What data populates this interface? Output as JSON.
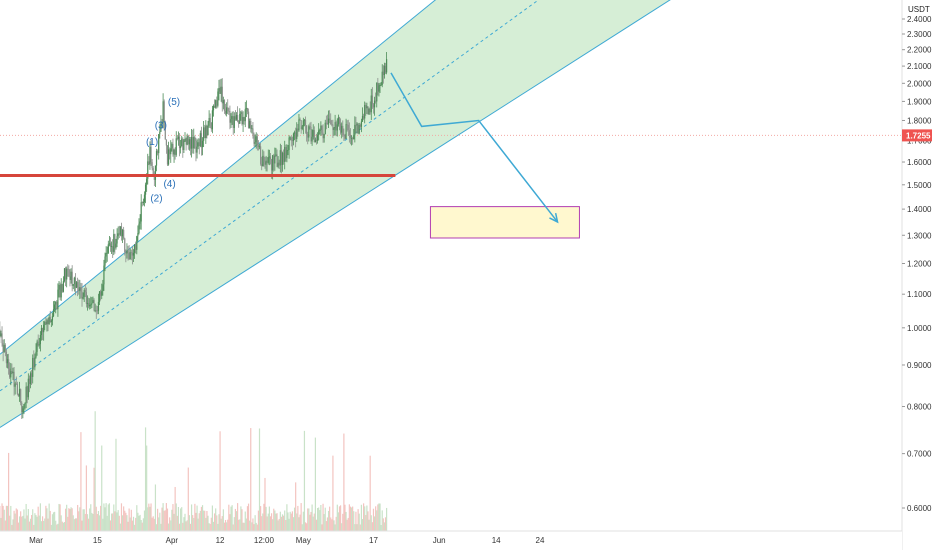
{
  "chart_data": {
    "type": "candlestick",
    "title": "",
    "currency_unit": "USDT",
    "y_axis": {
      "scale": "log",
      "range": [
        0.55,
        2.45
      ],
      "ticks": [
        "2.4000",
        "2.3000",
        "2.2000",
        "2.1000",
        "2.0000",
        "1.9000",
        "1.8000",
        "1.7000",
        "1.6000",
        "1.5000",
        "1.4000",
        "1.3000",
        "1.2000",
        "1.1000",
        "1.0000",
        "0.9000",
        "0.8000",
        "0.7000",
        "0.6000"
      ],
      "position": "right"
    },
    "x_axis": {
      "ticks": [
        "Mar",
        "15",
        "Apr",
        "12",
        "12:00",
        "May",
        "17",
        "Jun",
        "14",
        "24"
      ],
      "tick_dates": [
        "2021-03-01",
        "2021-03-15",
        "2021-04-01",
        "2021-04-12",
        "2021-04-22",
        "2021-05-01",
        "2021-05-17",
        "2021-06-01",
        "2021-06-14",
        "2021-06-24"
      ]
    },
    "last_price": {
      "label": "1.7255",
      "value": 1.7255,
      "color": "#ef5350"
    },
    "price_anchors": [
      {
        "date": "2021-02-15",
        "price": 1.55
      },
      {
        "date": "2021-02-17",
        "price": 1.4
      },
      {
        "date": "2021-02-19",
        "price": 1.1
      },
      {
        "date": "2021-02-22",
        "price": 0.92
      },
      {
        "date": "2021-02-26",
        "price": 0.8
      },
      {
        "date": "2021-03-02",
        "price": 0.98
      },
      {
        "date": "2021-03-05",
        "price": 1.05
      },
      {
        "date": "2021-03-08",
        "price": 1.18
      },
      {
        "date": "2021-03-11",
        "price": 1.12
      },
      {
        "date": "2021-03-15",
        "price": 1.05
      },
      {
        "date": "2021-03-17",
        "price": 1.22
      },
      {
        "date": "2021-03-20",
        "price": 1.32
      },
      {
        "date": "2021-03-23",
        "price": 1.2
      },
      {
        "date": "2021-03-25",
        "price": 1.4
      },
      {
        "date": "2021-03-27",
        "price": 1.63
      },
      {
        "date": "2021-03-28",
        "price": 1.55
      },
      {
        "date": "2021-03-30",
        "price": 1.86
      },
      {
        "date": "2021-03-31",
        "price": 1.62
      },
      {
        "date": "2021-04-03",
        "price": 1.7
      },
      {
        "date": "2021-04-07",
        "price": 1.68
      },
      {
        "date": "2021-04-10",
        "price": 1.8
      },
      {
        "date": "2021-04-12",
        "price": 1.95
      },
      {
        "date": "2021-04-15",
        "price": 1.78
      },
      {
        "date": "2021-04-18",
        "price": 1.82
      },
      {
        "date": "2021-04-22",
        "price": 1.58
      },
      {
        "date": "2021-04-26",
        "price": 1.62
      },
      {
        "date": "2021-04-30",
        "price": 1.78
      },
      {
        "date": "2021-05-04",
        "price": 1.72
      },
      {
        "date": "2021-05-08",
        "price": 1.8
      },
      {
        "date": "2021-05-12",
        "price": 1.72
      },
      {
        "date": "2021-05-15",
        "price": 1.84
      },
      {
        "date": "2021-05-17",
        "price": 1.9
      },
      {
        "date": "2021-05-19",
        "price": 2.05
      },
      {
        "date": "2021-05-20",
        "price": 2.1
      }
    ],
    "annotations": {
      "channel": {
        "upper": [
          {
            "date": "2021-02-15",
            "price": 0.875
          },
          {
            "date": "2021-05-27",
            "price": 2.43
          }
        ],
        "lower": [
          {
            "date": "2021-02-15",
            "price": 0.72
          },
          {
            "date": "2021-06-30",
            "price": 2.1
          }
        ],
        "fill": "#d6eed6",
        "line_color": "#3fa9d4"
      },
      "horizontal_level": {
        "price": 1.54,
        "from": "2021-02-15",
        "to": "2021-05-22",
        "color": "#d6453b"
      },
      "wave_labels": [
        {
          "text": "(1)",
          "date": "2021-03-27",
          "price": 1.68
        },
        {
          "text": "(2)",
          "date": "2021-03-28",
          "price": 1.43
        },
        {
          "text": "(3)",
          "date": "2021-03-29",
          "price": 1.76
        },
        {
          "text": "(4)",
          "date": "2021-03-31",
          "price": 1.49
        },
        {
          "text": "(5)",
          "date": "2021-04-01",
          "price": 1.88
        }
      ],
      "projection_path": [
        {
          "date": "2021-05-21",
          "price": 2.06
        },
        {
          "date": "2021-05-28",
          "price": 1.77
        },
        {
          "date": "2021-06-10",
          "price": 1.8
        },
        {
          "date": "2021-06-28",
          "price": 1.35
        }
      ],
      "target_zone": {
        "from": "2021-05-30",
        "to": "2021-07-03",
        "price_high": 1.41,
        "price_low": 1.29,
        "fill": "#fff8cf",
        "border": "#b23fb2"
      }
    }
  }
}
